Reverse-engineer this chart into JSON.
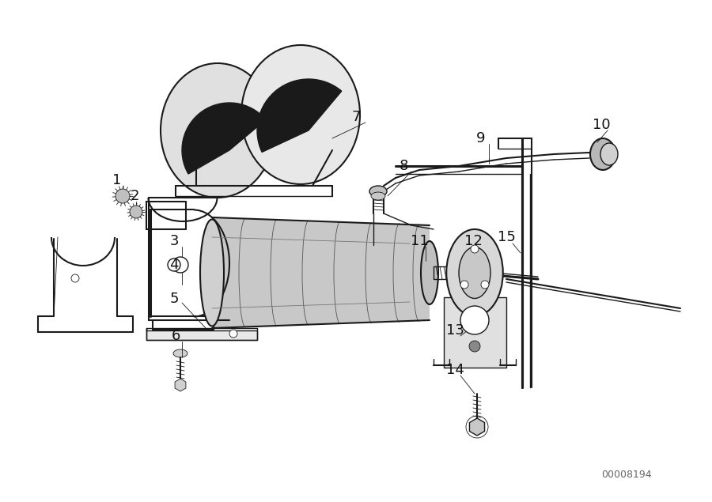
{
  "bg_color": "#f5f5f5",
  "line_color": "#1a1a1a",
  "fig_width": 9.0,
  "fig_height": 6.35,
  "dpi": 100,
  "watermark": "00008194",
  "img_extent": [
    0,
    900,
    0,
    635
  ]
}
